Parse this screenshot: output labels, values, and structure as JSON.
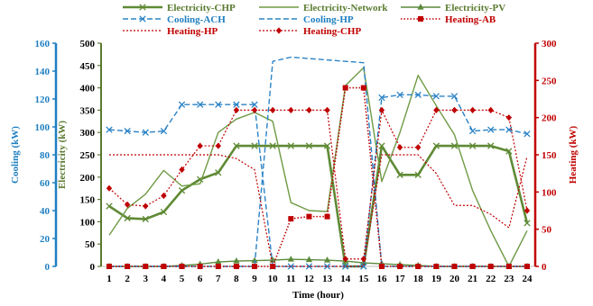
{
  "chart_data": {
    "type": "line",
    "xlabel": "Time (hour)",
    "x": [
      1,
      2,
      3,
      4,
      5,
      6,
      7,
      8,
      9,
      10,
      11,
      12,
      13,
      14,
      15,
      16,
      17,
      18,
      19,
      20,
      21,
      22,
      23,
      24
    ],
    "axes": {
      "left_outer": {
        "label": "Cooling (kW)",
        "range": [
          0,
          160
        ],
        "ticks": [
          0,
          20,
          40,
          60,
          80,
          100,
          120,
          140,
          160
        ],
        "color": "#1f7fc0"
      },
      "left_inner": {
        "label": "Electricity (kW)",
        "range": [
          0,
          500
        ],
        "ticks": [
          0,
          50,
          100,
          150,
          200,
          250,
          300,
          350,
          400,
          450,
          500
        ],
        "color": "#5a7a2f"
      },
      "right": {
        "label": "Heating (kW)",
        "range": [
          0,
          300
        ],
        "ticks": [
          0,
          50,
          100,
          150,
          200,
          250,
          300
        ],
        "color": "#c00000"
      }
    },
    "legend_placement": "top",
    "series": [
      {
        "name": "Electricity-CHP",
        "axis": "left_inner",
        "color": "#5f8a35",
        "dash": "solid",
        "marker": "x",
        "width": 2.6,
        "values": [
          135,
          108,
          106,
          122,
          170,
          195,
          210,
          270,
          270,
          270,
          270,
          270,
          270,
          0,
          0,
          270,
          205,
          205,
          270,
          270,
          270,
          270,
          258,
          97
        ]
      },
      {
        "name": "Electricity-Network",
        "axis": "left_inner",
        "color": "#6f9a45",
        "dash": "solid",
        "marker": "none",
        "width": 1.4,
        "values": [
          70,
          130,
          162,
          215,
          180,
          185,
          300,
          330,
          345,
          325,
          143,
          125,
          123,
          405,
          445,
          190,
          300,
          428,
          360,
          295,
          170,
          80,
          0,
          80
        ]
      },
      {
        "name": "Electricity-PV",
        "axis": "left_inner",
        "color": "#5a8a3a",
        "dash": "solid",
        "marker": "triangle",
        "width": 1.4,
        "values": [
          0,
          0,
          0,
          0,
          2,
          5,
          10,
          12,
          13,
          14,
          16,
          15,
          14,
          12,
          8,
          6,
          4,
          2,
          0,
          0,
          0,
          0,
          0,
          0
        ]
      },
      {
        "name": "Cooling-ACH",
        "axis": "left_outer",
        "color": "#2b83c6",
        "dash": "6,3",
        "marker": "x",
        "width": 1.4,
        "values": [
          98,
          97,
          96,
          97,
          116,
          116,
          116,
          116,
          116,
          0,
          0,
          0,
          0,
          0,
          0,
          121,
          123,
          123,
          122,
          122,
          97,
          98,
          98,
          95
        ]
      },
      {
        "name": "Cooling-HP",
        "axis": "left_outer",
        "color": "#2b83c6",
        "dash": "6,3",
        "marker": "none",
        "width": 1.4,
        "values": [
          0,
          0,
          0,
          0,
          0,
          0,
          0,
          0,
          0,
          147,
          150,
          149,
          148,
          147,
          146,
          0,
          0,
          0,
          0,
          0,
          0,
          0,
          0,
          0
        ]
      },
      {
        "name": "Heating-AB",
        "axis": "right",
        "color": "#c00000",
        "dash": "1.5,2",
        "marker": "square",
        "width": 1.6,
        "values": [
          0,
          0,
          0,
          0,
          0,
          0,
          0,
          0,
          0,
          0,
          64,
          67,
          67,
          240,
          240,
          0,
          0,
          0,
          0,
          0,
          0,
          0,
          0,
          0
        ]
      },
      {
        "name": "Heating-HP",
        "axis": "right",
        "color": "#c00000",
        "dash": "2,2",
        "marker": "none",
        "width": 1.2,
        "values": [
          150,
          150,
          150,
          150,
          150,
          150,
          150,
          145,
          130,
          0,
          0,
          0,
          0,
          0,
          0,
          150,
          150,
          150,
          125,
          82,
          82,
          70,
          52,
          148
        ]
      },
      {
        "name": "Heating-CHP",
        "axis": "right",
        "color": "#c00000",
        "dash": "2,2",
        "marker": "diamond",
        "width": 1.2,
        "values": [
          105,
          83,
          81,
          95,
          130,
          162,
          162,
          210,
          210,
          210,
          210,
          210,
          210,
          10,
          10,
          210,
          160,
          160,
          210,
          210,
          210,
          210,
          200,
          75
        ]
      }
    ]
  }
}
